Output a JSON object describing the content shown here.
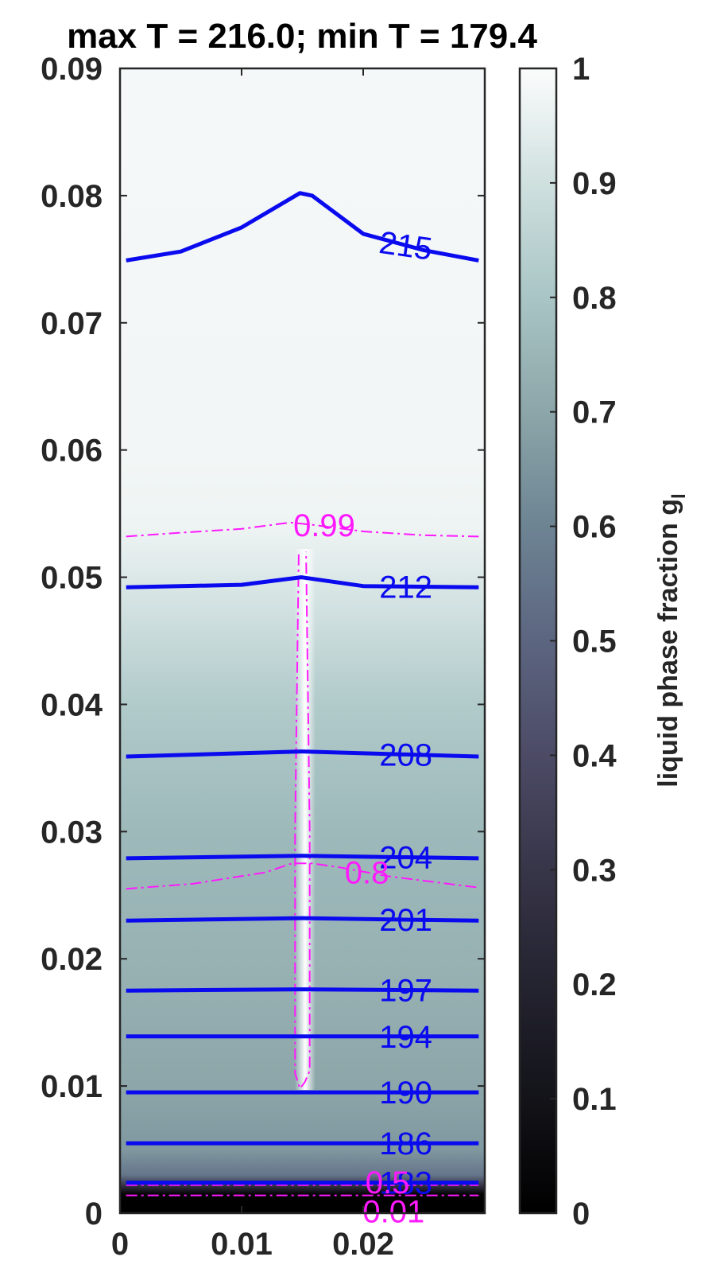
{
  "chart_data": {
    "type": "contour",
    "title": "max T = 216.0; min T = 179.4",
    "xlabel": "",
    "ylabel": "",
    "xlim": [
      0,
      0.03
    ],
    "ylim": [
      0,
      0.09
    ],
    "x_ticks": [
      "0",
      "0.01",
      "0.02"
    ],
    "y_ticks": [
      "0",
      "0.01",
      "0.02",
      "0.03",
      "0.04",
      "0.05",
      "0.06",
      "0.07",
      "0.08",
      "0.09"
    ],
    "colorbar": {
      "label": "liquid phase fraction g",
      "label_subscript": "l",
      "range": [
        0,
        1
      ],
      "ticks": [
        "0",
        "0.1",
        "0.2",
        "0.3",
        "0.4",
        "0.5",
        "0.6",
        "0.7",
        "0.8",
        "0.9",
        "1"
      ]
    },
    "background_field": {
      "name": "liquid phase fraction g_l",
      "y": [
        0.0008,
        0.0015,
        0.0022,
        0.003,
        0.005,
        0.01,
        0.015,
        0.02,
        0.03,
        0.04,
        0.05,
        0.054,
        0.06,
        0.09
      ],
      "g_l": [
        0.0,
        0.02,
        0.3,
        0.55,
        0.66,
        0.7,
        0.72,
        0.74,
        0.76,
        0.82,
        0.93,
        0.97,
        0.98,
        0.985
      ]
    },
    "temperature_contours": [
      {
        "label": "215",
        "level": 215,
        "x": [
          0.0005,
          0.005,
          0.01,
          0.0148,
          0.0158,
          0.02,
          0.025,
          0.0295
        ],
        "y": [
          0.0749,
          0.0756,
          0.0775,
          0.0802,
          0.08,
          0.077,
          0.0757,
          0.0749
        ]
      },
      {
        "label": "212",
        "level": 212,
        "x": [
          0.0005,
          0.01,
          0.0149,
          0.02,
          0.0295
        ],
        "y": [
          0.0492,
          0.0494,
          0.05,
          0.0493,
          0.0492
        ]
      },
      {
        "label": "208",
        "level": 208,
        "x": [
          0.0005,
          0.0149,
          0.0295
        ],
        "y": [
          0.0359,
          0.0363,
          0.0359
        ]
      },
      {
        "label": "204",
        "level": 204,
        "x": [
          0.0005,
          0.0149,
          0.0295
        ],
        "y": [
          0.0279,
          0.0281,
          0.0279
        ]
      },
      {
        "label": "201",
        "level": 201,
        "x": [
          0.0005,
          0.0149,
          0.0295
        ],
        "y": [
          0.023,
          0.0232,
          0.023
        ]
      },
      {
        "label": "197",
        "level": 197,
        "x": [
          0.0005,
          0.0149,
          0.0295
        ],
        "y": [
          0.0175,
          0.0176,
          0.0175
        ]
      },
      {
        "label": "194",
        "level": 194,
        "x": [
          0.0005,
          0.0149,
          0.0295
        ],
        "y": [
          0.0139,
          0.0139,
          0.0139
        ]
      },
      {
        "label": "190",
        "level": 190,
        "x": [
          0.0005,
          0.0149,
          0.0295
        ],
        "y": [
          0.0095,
          0.0095,
          0.0095
        ]
      },
      {
        "label": "186",
        "level": 186,
        "x": [
          0.0005,
          0.0149,
          0.0295
        ],
        "y": [
          0.0055,
          0.0055,
          0.0055
        ]
      },
      {
        "label": "183",
        "level": 183,
        "x": [
          0.0005,
          0.0149,
          0.0295
        ],
        "y": [
          0.0024,
          0.0024,
          0.0024
        ]
      }
    ],
    "phase_fraction_contours": [
      {
        "label": "0.99",
        "level": 0.99,
        "x": [
          0.0005,
          0.005,
          0.01,
          0.014,
          0.016,
          0.02,
          0.025,
          0.0295
        ],
        "y": [
          0.0532,
          0.0535,
          0.0538,
          0.0543,
          0.0541,
          0.0536,
          0.0533,
          0.0532
        ]
      },
      {
        "label": "0.99",
        "level": 0.99,
        "x": [
          0.0147,
          0.0146,
          0.0144,
          0.0144,
          0.0148,
          0.0152,
          0.0156,
          0.0156,
          0.0154,
          0.0153
        ],
        "y": [
          0.0518,
          0.045,
          0.03,
          0.011,
          0.0098,
          0.0103,
          0.0112,
          0.03,
          0.045,
          0.052
        ]
      },
      {
        "label": "0.8",
        "level": 0.8,
        "x": [
          0.0005,
          0.006,
          0.012,
          0.0138,
          0.0142,
          0.0158,
          0.018,
          0.022,
          0.0295
        ],
        "y": [
          0.0255,
          0.0259,
          0.0268,
          0.0274,
          0.0275,
          0.0275,
          0.0272,
          0.0265,
          0.0256
        ]
      },
      {
        "label": "0.5",
        "level": 0.5,
        "x": [
          0.0005,
          0.0295
        ],
        "y": [
          0.0022,
          0.0022
        ]
      },
      {
        "label": "0.01",
        "level": 0.01,
        "x": [
          0.0005,
          0.0295
        ],
        "y": [
          0.0014,
          0.0014
        ]
      }
    ],
    "colors": {
      "temperature_contours": "#0a0aef",
      "phase_fraction_contours": "#ff19ff",
      "axes": "#262626"
    }
  }
}
